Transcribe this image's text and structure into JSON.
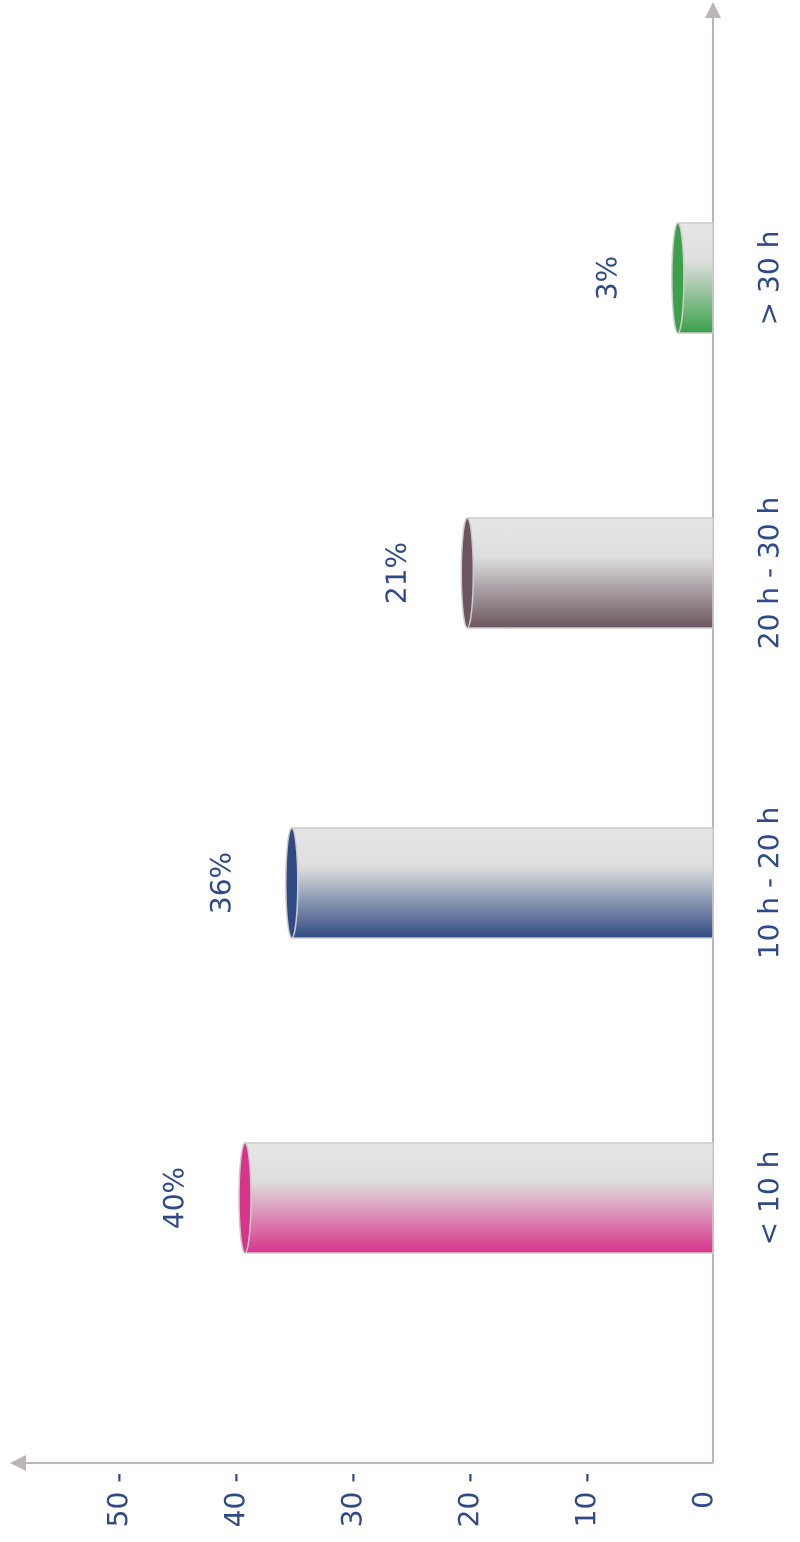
{
  "chart_data": {
    "type": "bar",
    "orientation": "rotated-90-clockwise",
    "categories": [
      "< 10 h",
      "10 h - 20 h",
      "20 h - 30 h",
      "> 30 h"
    ],
    "values": [
      40,
      36,
      21,
      3
    ],
    "value_labels": [
      "40%",
      "36%",
      "21%",
      "3%"
    ],
    "colors": [
      "#d8348c",
      "#2f4a82",
      "#6b5560",
      "#3aa04a"
    ],
    "ylim": [
      0,
      55
    ],
    "ticks": [
      0,
      10,
      20,
      30,
      40,
      50
    ],
    "tick_labels": [
      "0",
      "10 -",
      "20 -",
      "30 -",
      "40 -",
      "50 -"
    ],
    "label_color": "#2f4a87",
    "axis_color": "#bdb5b5",
    "grid": false,
    "legend": "none"
  }
}
